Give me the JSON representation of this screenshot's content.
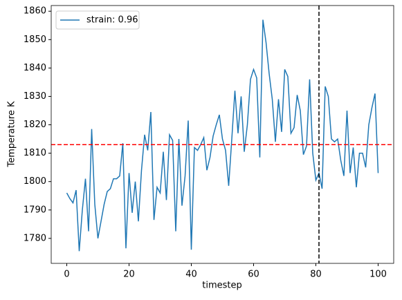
{
  "chart_data": {
    "type": "line",
    "xlabel": "timestep",
    "ylabel": "Temperature K",
    "x": [
      0,
      1,
      2,
      3,
      4,
      5,
      6,
      7,
      8,
      9,
      10,
      11,
      12,
      13,
      14,
      15,
      16,
      17,
      18,
      19,
      20,
      21,
      22,
      23,
      24,
      25,
      26,
      27,
      28,
      29,
      30,
      31,
      32,
      33,
      34,
      35,
      36,
      37,
      38,
      39,
      40,
      41,
      42,
      43,
      44,
      45,
      46,
      47,
      48,
      49,
      50,
      51,
      52,
      53,
      54,
      55,
      56,
      57,
      58,
      59,
      60,
      61,
      62,
      63,
      64,
      65,
      66,
      67,
      68,
      69,
      70,
      71,
      72,
      73,
      74,
      75,
      76,
      77,
      78,
      79,
      80,
      81,
      82,
      83,
      84,
      85,
      86,
      87,
      88,
      89,
      90,
      91,
      92,
      93,
      94,
      95,
      96,
      97,
      98,
      99,
      100
    ],
    "series": [
      {
        "name": "strain: 0.96",
        "color": "#1f77b4",
        "values": [
          1796,
          1794,
          1792.5,
          1797,
          1775.5,
          1790,
          1801,
          1782.5,
          1818.5,
          1792,
          1780,
          1786,
          1792,
          1796.5,
          1797.5,
          1801,
          1801,
          1802,
          1813.5,
          1776.5,
          1803,
          1789,
          1800,
          1786,
          1804,
          1816.5,
          1811,
          1824.5,
          1786.5,
          1798,
          1796,
          1810.5,
          1793.5,
          1816.5,
          1814.5,
          1782.5,
          1815,
          1791.5,
          1802,
          1821.5,
          1776,
          1812,
          1811,
          1813,
          1815.5,
          1804,
          1808.5,
          1816,
          1820,
          1823.5,
          1815,
          1811,
          1798.5,
          1815,
          1832,
          1817,
          1830,
          1810.5,
          1820,
          1836,
          1839.5,
          1836.5,
          1808.5,
          1857,
          1849,
          1838,
          1829,
          1814,
          1829,
          1817.5,
          1839.5,
          1837,
          1817,
          1819,
          1830.5,
          1825,
          1809.5,
          1812.5,
          1836,
          1810,
          1800.5,
          1803,
          1797.5,
          1833.5,
          1830,
          1815,
          1814,
          1815,
          1807.5,
          1802,
          1825,
          1803,
          1812,
          1798,
          1810,
          1810,
          1805,
          1820,
          1826,
          1831,
          1803
        ]
      }
    ],
    "hline": {
      "value": 1813,
      "color": "#ff0000"
    },
    "vline": {
      "value": 81,
      "color": "#000000"
    },
    "xlim": [
      -5,
      105
    ],
    "xticks": [
      0,
      20,
      40,
      60,
      80,
      100
    ],
    "ylim": [
      1771.2,
      1862
    ],
    "yticks": [
      1780,
      1790,
      1800,
      1810,
      1820,
      1830,
      1840,
      1850,
      1860
    ],
    "legend": "upper left",
    "grid": false
  }
}
